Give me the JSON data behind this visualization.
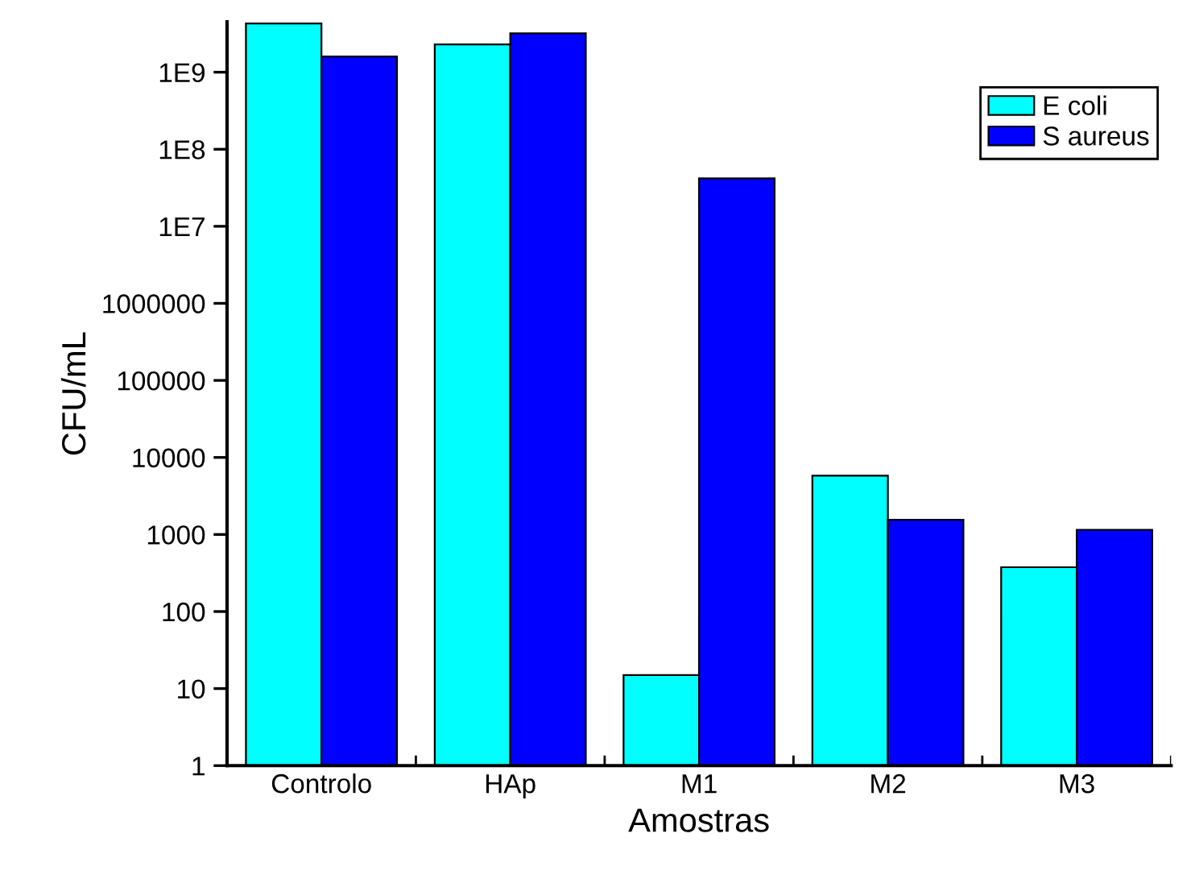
{
  "chart_data": {
    "type": "bar",
    "xlabel": "Amostras",
    "ylabel": "CFU/mL",
    "categories": [
      "Controlo",
      "HAp",
      "M1",
      "M2",
      "M3"
    ],
    "series": [
      {
        "name": "E coli",
        "color": "#00ffff",
        "values": [
          4300000000,
          2300000000,
          15,
          5800,
          376
        ]
      },
      {
        "name": "S aureus",
        "color": "#0000ff",
        "values": [
          1600000000,
          3200000000,
          42000000,
          1550,
          1150
        ]
      }
    ],
    "log": "y",
    "ylim": [
      1,
      4500000000
    ],
    "yticks": [
      1,
      10,
      100,
      1000,
      10000,
      100000,
      1000000,
      {
        "value": 10000000,
        "label": "1E7"
      },
      {
        "value": 100000000,
        "label": "1E8"
      },
      {
        "value": 1000000000,
        "label": "1E9"
      }
    ],
    "grid": false,
    "legend": "top right"
  }
}
